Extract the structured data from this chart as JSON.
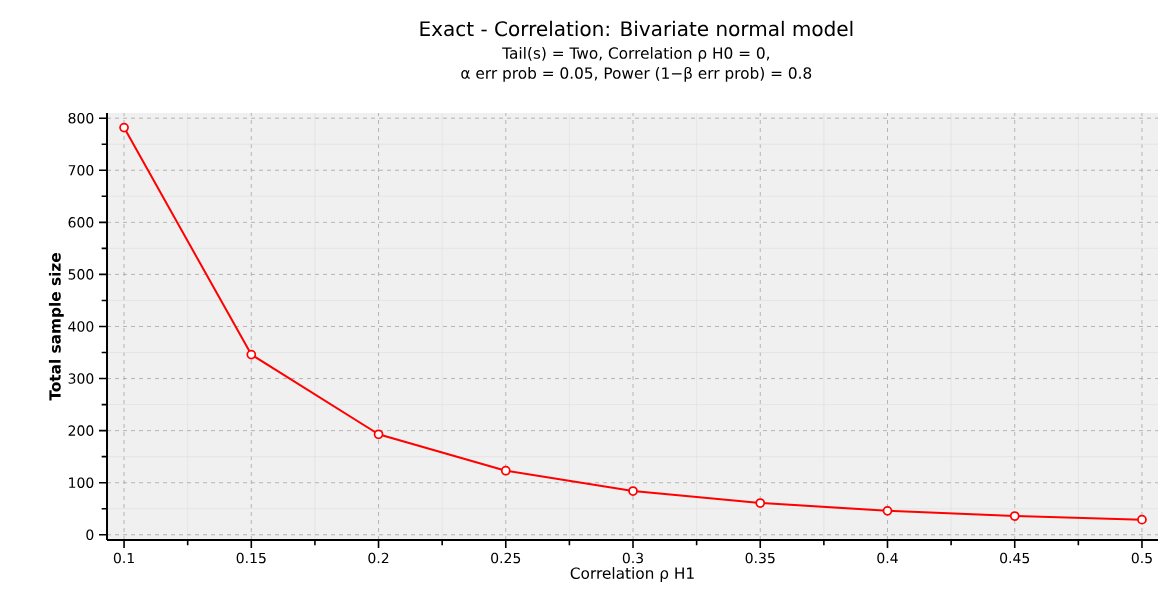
{
  "chart_data": {
    "type": "line",
    "title": "Exact - Correlation: Bivariate normal model",
    "subtitle": "Tail(s) = Two, Correlation ρ H0 = 0,",
    "annotations": [
      "α err prob = 0.05, Power (1−β err prob) = 0.8"
    ],
    "xlabel": "Correlation ρ H1",
    "ylabel": "Total sample size",
    "x": [
      0.1,
      0.15,
      0.2,
      0.25,
      0.3,
      0.35,
      0.4,
      0.45,
      0.5
    ],
    "series": [
      {
        "color": "#ff0000",
        "values": [
          782,
          346,
          193,
          123,
          84,
          61,
          46,
          36,
          29
        ]
      }
    ],
    "xlim": [
      0.0933,
      0.5063
    ],
    "ylim": [
      -10,
      810
    ],
    "xticks": [
      0.1,
      0.15,
      0.2,
      0.25,
      0.3,
      0.35,
      0.4,
      0.45,
      0.5
    ],
    "yticks": [
      0,
      100,
      200,
      300,
      400,
      500,
      600,
      700,
      800
    ],
    "grid": true,
    "marker": "circle",
    "line_style": "solid"
  }
}
